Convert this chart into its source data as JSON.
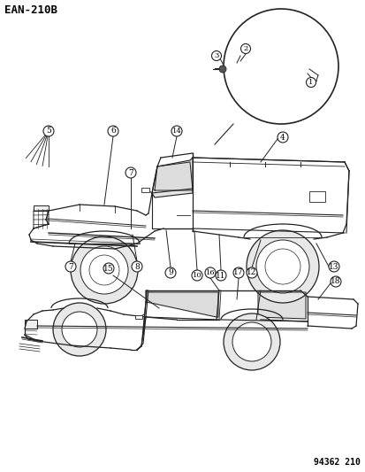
{
  "title_code": "EAN-210B",
  "part_number": "94362 210",
  "background_color": "#ffffff",
  "line_color": "#222222",
  "text_color": "#000000",
  "fig_width": 4.14,
  "fig_height": 5.33,
  "dpi": 100
}
